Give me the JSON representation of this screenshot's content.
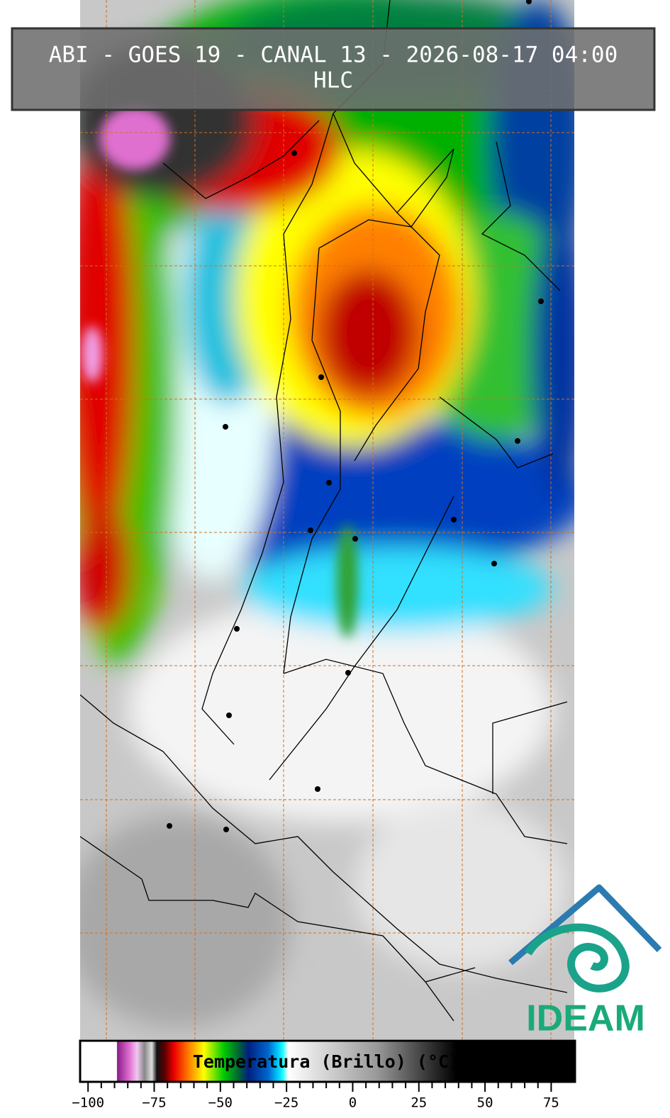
{
  "header": {
    "title": "ABI - GOES 19 - CANAL 13 - 2026-08-17 04:00",
    "subtitle": "HLC"
  },
  "colorbar": {
    "label": "Temperatura (Brillo) (°C)",
    "xlim": [
      -103,
      84
    ],
    "xticks": [
      {
        "value": -100,
        "label": "−100"
      },
      {
        "value": -75,
        "label": "−75"
      },
      {
        "value": -50,
        "label": "−50"
      },
      {
        "value": -25,
        "label": "−25"
      },
      0,
      25,
      50,
      75
    ]
  },
  "logo": {
    "text": "IDEAM"
  }
}
